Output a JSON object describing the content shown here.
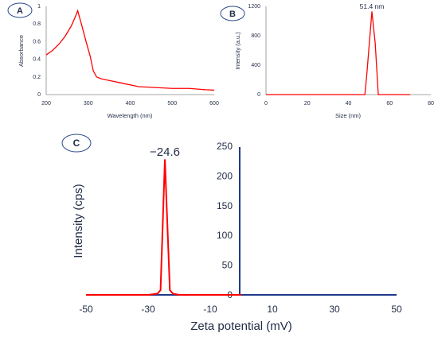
{
  "colors": {
    "series": "#ff0000",
    "axis": "#888888",
    "axis_c": "#1f3a8a",
    "text": "#1f2a44",
    "badge_stroke": "#2b4a8c"
  },
  "chart_data": [
    {
      "panel": "A",
      "type": "line",
      "xlabel": "Wavelength (nm)",
      "ylabel": "Absorbance",
      "xlim": [
        200,
        600
      ],
      "ylim": [
        0,
        1
      ],
      "xticks": [
        "200",
        "300",
        "400",
        "500",
        "600"
      ],
      "yticks": [
        "0",
        "0.2",
        "0.4",
        "0.6",
        "0.8",
        "1"
      ],
      "x": [
        200,
        215,
        230,
        245,
        260,
        270,
        275,
        285,
        295,
        305,
        312,
        320,
        330,
        350,
        380,
        420,
        460,
        500,
        540,
        580,
        600
      ],
      "y": [
        0.45,
        0.5,
        0.57,
        0.66,
        0.78,
        0.89,
        0.95,
        0.78,
        0.6,
        0.43,
        0.27,
        0.2,
        0.18,
        0.16,
        0.13,
        0.09,
        0.08,
        0.07,
        0.07,
        0.055,
        0.05
      ]
    },
    {
      "panel": "B",
      "type": "line",
      "xlabel": "Size (nm)",
      "ylabel": "Intensity (a.u.)",
      "xlim": [
        0,
        80
      ],
      "ylim": [
        0,
        1200
      ],
      "xticks": [
        "0",
        "20",
        "40",
        "60",
        "80"
      ],
      "yticks": [
        "0",
        "400",
        "800",
        "1200"
      ],
      "annotation": "51.4 nm",
      "x": [
        0,
        48,
        49,
        51.4,
        53,
        54.5,
        56,
        70
      ],
      "y": [
        0,
        0,
        300,
        1130,
        700,
        0,
        0,
        0
      ]
    },
    {
      "panel": "C",
      "type": "line",
      "xlabel": "Zeta potential (mV)",
      "ylabel": "Intensity (cps)",
      "xlim": [
        -50,
        50
      ],
      "ylim": [
        0,
        250
      ],
      "xticks": [
        "-50",
        "-30",
        "-10",
        "10",
        "30",
        "50"
      ],
      "yticks": [
        "0",
        "50",
        "100",
        "150",
        "200",
        "250"
      ],
      "annotation": "−24.6",
      "x": [
        -50,
        -40,
        -30,
        -27,
        -26,
        -24.6,
        -23,
        -22,
        -20,
        -10,
        0
      ],
      "y": [
        0,
        0,
        0,
        2,
        8,
        228,
        8,
        2,
        0,
        0,
        0
      ]
    }
  ]
}
